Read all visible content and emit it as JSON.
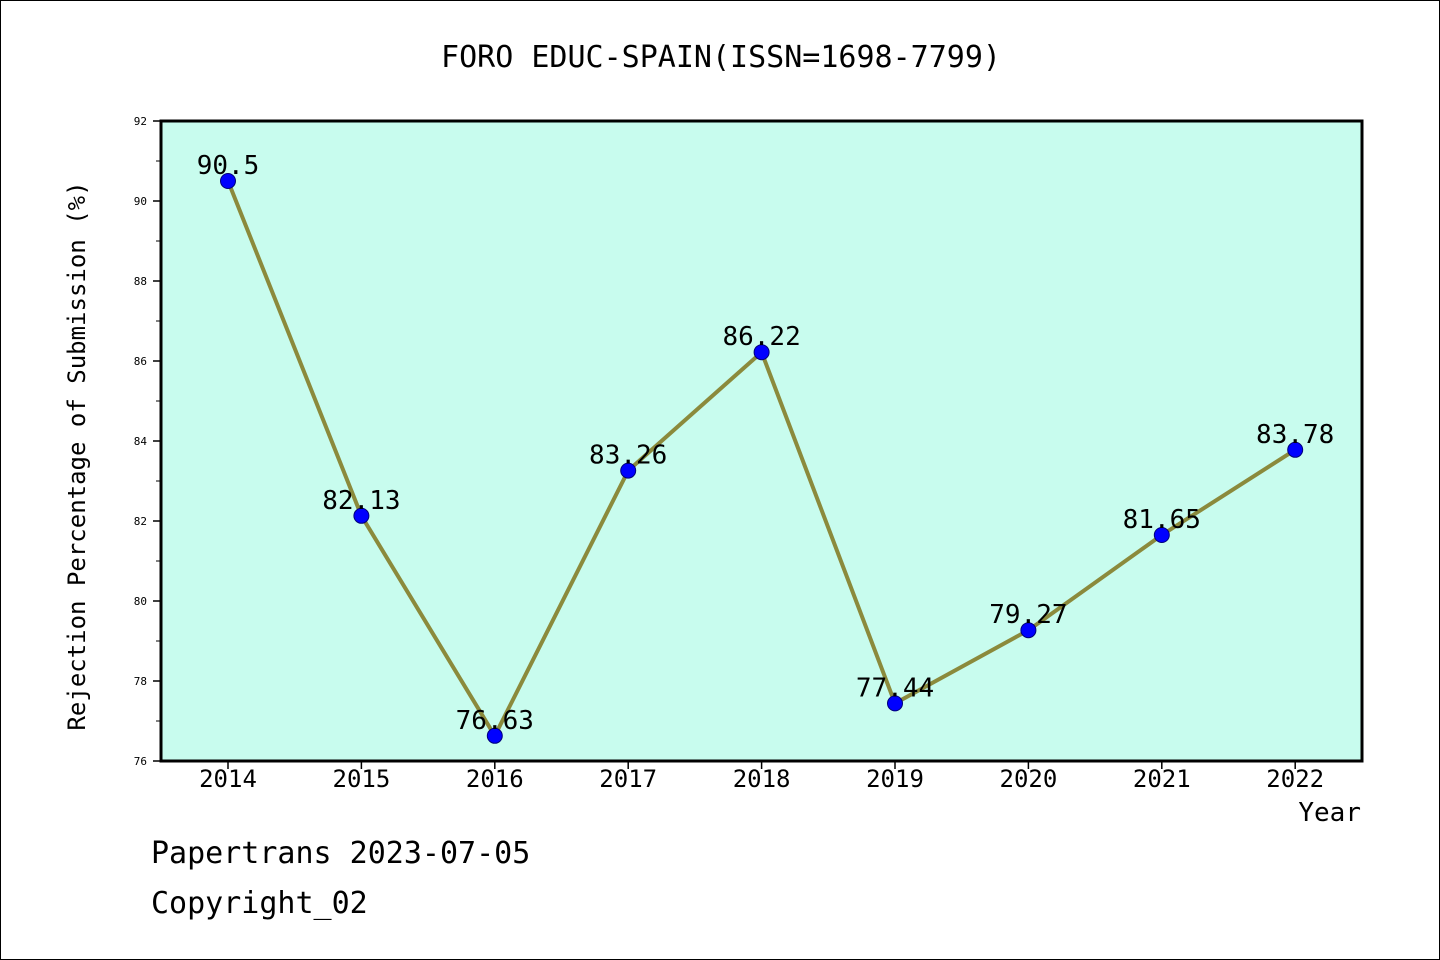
{
  "chart_data": {
    "type": "line",
    "title": "FORO EDUC-SPAIN(ISSN=1698-7799)",
    "xlabel": "Year",
    "ylabel": "Rejection Percentage of Submission (%)",
    "categories": [
      "2014",
      "2015",
      "2016",
      "2017",
      "2018",
      "2019",
      "2020",
      "2021",
      "2022"
    ],
    "series": [
      {
        "values": [
          90.5,
          82.13,
          76.63,
          83.26,
          86.22,
          77.44,
          79.27,
          81.65,
          83.78
        ]
      }
    ],
    "data_labels": [
      "90.5",
      "82.13",
      "76.63",
      "83.26",
      "86.22",
      "77.44",
      "79.27",
      "81.65",
      "83.78"
    ],
    "ylim": [
      76,
      92
    ],
    "yticks": [
      76,
      78,
      80,
      82,
      84,
      86,
      88,
      90,
      92
    ],
    "grid": false,
    "plot_background": "#c8fcee",
    "line_color": "#8b8a3c",
    "marker_color": "#0000ff"
  },
  "footer": {
    "line1": "Papertrans 2023-07-05",
    "line2": "Copyright_02"
  }
}
